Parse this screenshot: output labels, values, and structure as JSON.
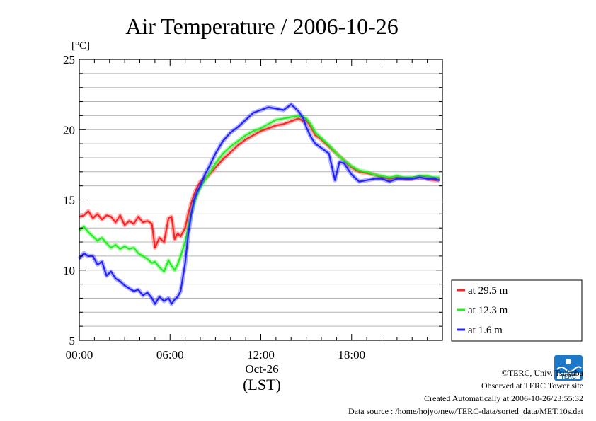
{
  "chart_data": {
    "type": "line",
    "title": "Air Temperature / 2006-10-26",
    "y_unit": "[°C]",
    "ylim": [
      5,
      25
    ],
    "y_ticks": [
      "5",
      "10",
      "15",
      "20",
      "25"
    ],
    "xlim": [
      0,
      24
    ],
    "x_ticks": [
      {
        "hour": 0,
        "label": "00:00"
      },
      {
        "hour": 6,
        "label": "06:00"
      },
      {
        "hour": 12,
        "label": "12:00"
      },
      {
        "hour": 18,
        "label": "18:00"
      }
    ],
    "x_date_label": "Oct-26",
    "xlabel": "(LST)",
    "grid": "horizontal",
    "legend_position": "right",
    "series": [
      {
        "name": "at 29.5 m",
        "color": "#ff2222",
        "x": [
          0,
          0.3,
          0.6,
          0.9,
          1.2,
          1.5,
          1.8,
          2.1,
          2.4,
          2.7,
          3.0,
          3.3,
          3.6,
          3.9,
          4.2,
          4.5,
          4.8,
          5.0,
          5.3,
          5.6,
          5.9,
          6.1,
          6.3,
          6.5,
          6.7,
          7.0,
          7.2,
          7.4,
          7.6,
          7.8,
          8.0,
          8.3,
          8.6,
          9.0,
          9.5,
          10.0,
          10.5,
          11.0,
          11.5,
          12.0,
          12.5,
          13.0,
          13.5,
          14.0,
          14.5,
          14.8,
          15.0,
          15.3,
          15.6,
          16.0,
          16.5,
          17.0,
          17.5,
          18.0,
          18.5,
          19.0,
          19.5,
          20.0,
          20.5,
          21.0,
          21.5,
          22.0,
          22.5,
          23.0,
          23.5,
          23.8
        ],
        "y": [
          13.8,
          13.9,
          14.2,
          13.7,
          14.0,
          13.6,
          13.9,
          13.8,
          13.4,
          13.9,
          13.2,
          13.5,
          13.3,
          13.8,
          13.4,
          13.5,
          13.3,
          11.6,
          12.3,
          12.0,
          13.7,
          13.8,
          12.2,
          12.6,
          12.4,
          13.0,
          14.0,
          14.8,
          15.4,
          15.9,
          16.3,
          16.5,
          16.8,
          17.3,
          17.9,
          18.4,
          18.9,
          19.3,
          19.6,
          19.9,
          20.1,
          20.3,
          20.4,
          20.6,
          20.8,
          20.6,
          20.7,
          20.2,
          19.6,
          19.3,
          18.8,
          18.3,
          17.8,
          17.3,
          17.0,
          16.9,
          16.8,
          16.6,
          16.5,
          16.6,
          16.5,
          16.5,
          16.6,
          16.5,
          16.4,
          16.4
        ]
      },
      {
        "name": "at 12.3 m",
        "color": "#22ee22",
        "x": [
          0,
          0.3,
          0.6,
          0.9,
          1.2,
          1.5,
          1.8,
          2.1,
          2.4,
          2.7,
          3.0,
          3.3,
          3.6,
          3.9,
          4.2,
          4.5,
          4.8,
          5.0,
          5.3,
          5.6,
          5.9,
          6.1,
          6.3,
          6.5,
          6.7,
          7.0,
          7.2,
          7.4,
          7.6,
          7.8,
          8.0,
          8.3,
          8.6,
          9.0,
          9.5,
          10.0,
          10.5,
          11.0,
          11.5,
          12.0,
          12.5,
          13.0,
          13.5,
          14.0,
          14.5,
          14.8,
          15.0,
          15.3,
          15.6,
          16.0,
          16.5,
          17.0,
          17.5,
          18.0,
          18.5,
          19.0,
          19.5,
          20.0,
          20.5,
          21.0,
          21.5,
          22.0,
          22.5,
          23.0,
          23.5,
          23.8
        ],
        "y": [
          12.8,
          13.1,
          12.7,
          12.4,
          12.1,
          12.3,
          11.9,
          11.6,
          11.8,
          11.5,
          11.7,
          11.5,
          11.6,
          11.2,
          11.0,
          10.8,
          10.5,
          10.6,
          10.2,
          9.9,
          10.7,
          10.3,
          10.0,
          10.4,
          11.0,
          12.0,
          13.0,
          14.0,
          14.8,
          15.4,
          15.9,
          16.4,
          16.9,
          17.6,
          18.3,
          18.8,
          19.2,
          19.6,
          19.9,
          20.1,
          20.4,
          20.7,
          20.8,
          20.9,
          21.0,
          20.9,
          20.8,
          20.4,
          19.8,
          19.4,
          18.9,
          18.3,
          17.8,
          17.4,
          17.1,
          17.0,
          16.8,
          16.7,
          16.6,
          16.7,
          16.6,
          16.6,
          16.7,
          16.7,
          16.6,
          16.6
        ]
      },
      {
        "name": "at 1.6 m",
        "color": "#2222ff",
        "x": [
          0,
          0.3,
          0.6,
          0.9,
          1.2,
          1.5,
          1.8,
          2.1,
          2.4,
          2.7,
          3.0,
          3.3,
          3.6,
          3.9,
          4.2,
          4.5,
          4.8,
          5.0,
          5.3,
          5.6,
          5.9,
          6.1,
          6.3,
          6.5,
          6.7,
          7.0,
          7.2,
          7.4,
          7.6,
          7.8,
          8.0,
          8.3,
          8.6,
          9.0,
          9.5,
          10.0,
          10.5,
          11.0,
          11.5,
          12.0,
          12.5,
          13.0,
          13.5,
          14.0,
          14.5,
          14.8,
          15.0,
          15.3,
          15.6,
          16.0,
          16.5,
          16.9,
          17.2,
          17.5,
          18.0,
          18.5,
          19.0,
          19.5,
          20.0,
          20.5,
          21.0,
          21.5,
          22.0,
          22.5,
          23.0,
          23.5,
          23.8
        ],
        "y": [
          10.8,
          11.2,
          11.0,
          11.0,
          10.4,
          10.6,
          9.6,
          9.9,
          9.4,
          9.2,
          8.9,
          8.7,
          8.5,
          8.6,
          8.2,
          8.4,
          8.0,
          7.6,
          8.1,
          7.8,
          8.0,
          7.6,
          7.9,
          8.1,
          8.5,
          10.5,
          12.5,
          14.0,
          15.0,
          15.6,
          16.0,
          16.8,
          17.4,
          18.3,
          19.2,
          19.8,
          20.2,
          20.7,
          21.2,
          21.4,
          21.6,
          21.5,
          21.4,
          21.8,
          21.3,
          20.8,
          20.2,
          19.5,
          19.0,
          18.7,
          18.3,
          16.4,
          17.7,
          17.6,
          16.8,
          16.3,
          16.4,
          16.5,
          16.5,
          16.3,
          16.5,
          16.5,
          16.5,
          16.6,
          16.5,
          16.5,
          16.4
        ]
      }
    ]
  },
  "credits": {
    "copyright": "©TERC, Univ. Tsukuba",
    "observed": "Observed at TERC Tower site",
    "created": "Created Automatically at 2006-10-26/23:55:32",
    "source": "Data source : /home/hojyo/new/TERC-data/sorted_data/MET.10s.dat"
  },
  "logo": {
    "icon": "terc-logo-icon",
    "text": "TERC",
    "color": "#1e78c8"
  }
}
